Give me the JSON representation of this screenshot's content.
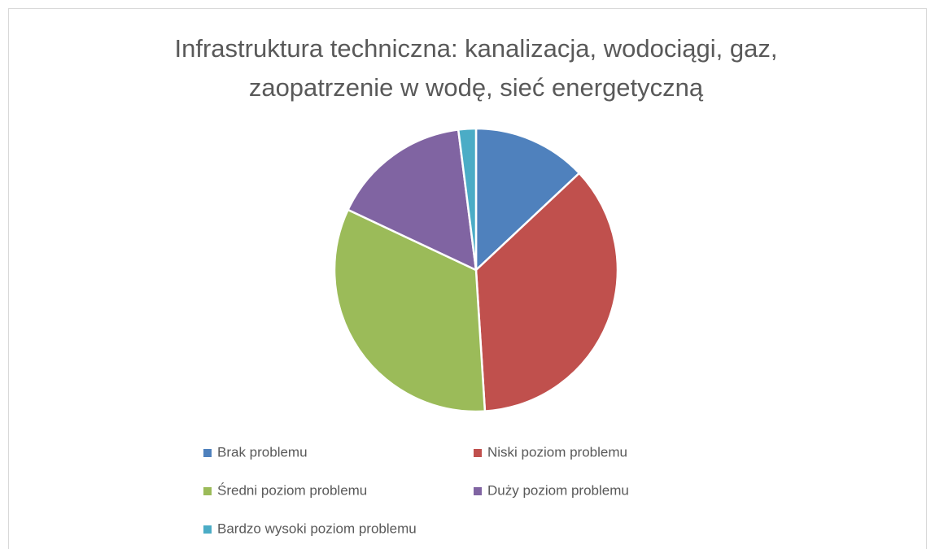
{
  "chart_data": {
    "type": "pie",
    "title": "Infrastruktura techniczna: kanalizacja, wodociągi, gaz, zaopatrzenie w wodę, sieć energetyczną",
    "categories": [
      "Brak problemu",
      "Niski poziom problemu",
      "Średni poziom problemu",
      "Duży poziom problemu",
      "Bardzo wysoki poziom problemu"
    ],
    "values": [
      13,
      36,
      33,
      16,
      2
    ],
    "colors": [
      "#4f81bd",
      "#c0504d",
      "#9bbb59",
      "#8064a2",
      "#4bacc6"
    ],
    "legend": "bottom"
  }
}
